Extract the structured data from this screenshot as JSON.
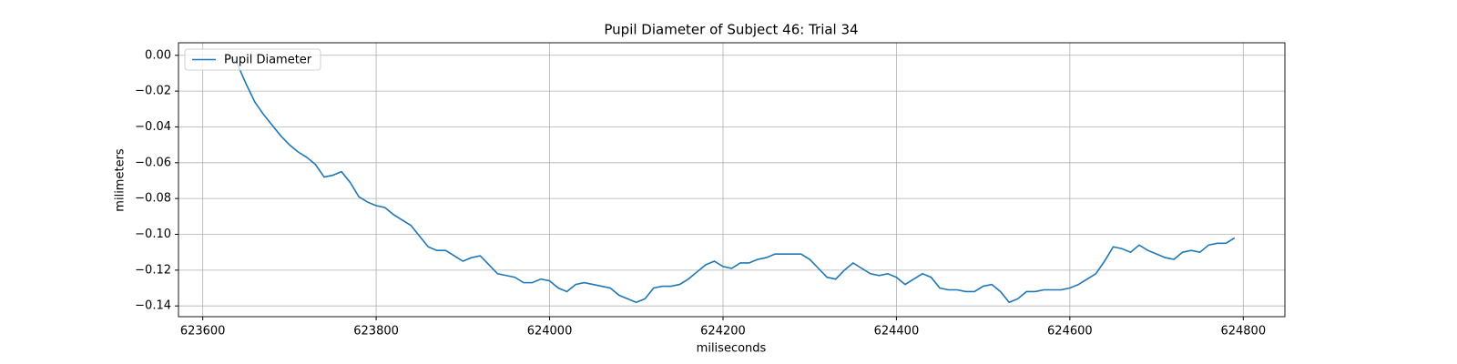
{
  "chart_data": {
    "type": "line",
    "title": "Pupil Diameter of Subject 46: Trial 34",
    "xlabel": "miliseconds",
    "ylabel": "milimeters",
    "x": [
      623630,
      623640,
      623650,
      623660,
      623670,
      623680,
      623690,
      623700,
      623710,
      623720,
      623730,
      623740,
      623750,
      623760,
      623770,
      623780,
      623790,
      623800,
      623810,
      623820,
      623830,
      623840,
      623850,
      623860,
      623870,
      623880,
      623890,
      623900,
      623910,
      623920,
      623930,
      623940,
      623950,
      623960,
      623970,
      623980,
      623990,
      624000,
      624010,
      624020,
      624030,
      624040,
      624050,
      624060,
      624070,
      624080,
      624090,
      624100,
      624110,
      624120,
      624130,
      624140,
      624150,
      624160,
      624170,
      624180,
      624190,
      624200,
      624210,
      624220,
      624230,
      624240,
      624250,
      624260,
      624270,
      624280,
      624290,
      624300,
      624310,
      624320,
      624330,
      624340,
      624350,
      624360,
      624370,
      624380,
      624390,
      624400,
      624410,
      624420,
      624430,
      624440,
      624450,
      624460,
      624470,
      624480,
      624490,
      624500,
      624510,
      624520,
      624530,
      624540,
      624550,
      624560,
      624570,
      624580,
      624590,
      624600,
      624610,
      624620,
      624630,
      624640,
      624650,
      624660,
      624670,
      624680,
      624690,
      624700,
      624710,
      624720,
      624730,
      624740,
      624750,
      624760,
      624770,
      624780,
      624790
    ],
    "series": [
      {
        "name": "Pupil Diameter",
        "color": "#1f77b4",
        "values": [
          0,
          -0.005,
          -0.016,
          -0.026,
          -0.033,
          -0.039,
          -0.045,
          -0.05,
          -0.054,
          -0.057,
          -0.061,
          -0.068,
          -0.067,
          -0.065,
          -0.071,
          -0.079,
          -0.082,
          -0.084,
          -0.085,
          -0.089,
          -0.092,
          -0.095,
          -0.101,
          -0.107,
          -0.109,
          -0.109,
          -0.112,
          -0.115,
          -0.113,
          -0.112,
          -0.117,
          -0.122,
          -0.123,
          -0.124,
          -0.127,
          -0.127,
          -0.125,
          -0.126,
          -0.13,
          -0.132,
          -0.128,
          -0.127,
          -0.128,
          -0.129,
          -0.13,
          -0.134,
          -0.136,
          -0.138,
          -0.136,
          -0.13,
          -0.129,
          -0.129,
          -0.128,
          -0.125,
          -0.121,
          -0.117,
          -0.115,
          -0.118,
          -0.119,
          -0.116,
          -0.116,
          -0.114,
          -0.113,
          -0.111,
          -0.111,
          -0.111,
          -0.111,
          -0.114,
          -0.119,
          -0.124,
          -0.125,
          -0.12,
          -0.116,
          -0.119,
          -0.122,
          -0.123,
          -0.122,
          -0.124,
          -0.128,
          -0.125,
          -0.122,
          -0.124,
          -0.13,
          -0.131,
          -0.131,
          -0.132,
          -0.132,
          -0.129,
          -0.128,
          -0.132,
          -0.138,
          -0.136,
          -0.132,
          -0.132,
          -0.131,
          -0.131,
          -0.131,
          -0.13,
          -0.128,
          -0.125,
          -0.122,
          -0.115,
          -0.107,
          -0.108,
          -0.11,
          -0.106,
          -0.109,
          -0.111,
          -0.113,
          -0.114,
          -0.11,
          -0.109,
          -0.11,
          -0.106,
          -0.105,
          -0.105,
          -0.102
        ]
      }
    ],
    "xlim": [
      623572,
      624848
    ],
    "ylim": [
      -0.146,
      0.007
    ],
    "xticks": [
      623600,
      623800,
      624000,
      624200,
      624400,
      624600,
      624800
    ],
    "yticks": [
      {
        "value": 0,
        "label": "0.00"
      },
      {
        "value": -0.02,
        "label": "−0.02"
      },
      {
        "value": -0.04,
        "label": "−0.04"
      },
      {
        "value": -0.06,
        "label": "−0.06"
      },
      {
        "value": -0.08,
        "label": "−0.08"
      },
      {
        "value": -0.1,
        "label": "−0.10"
      },
      {
        "value": -0.12,
        "label": "−0.12"
      },
      {
        "value": -0.14,
        "label": "−0.14"
      }
    ],
    "grid": true,
    "legend": "upper-left"
  }
}
